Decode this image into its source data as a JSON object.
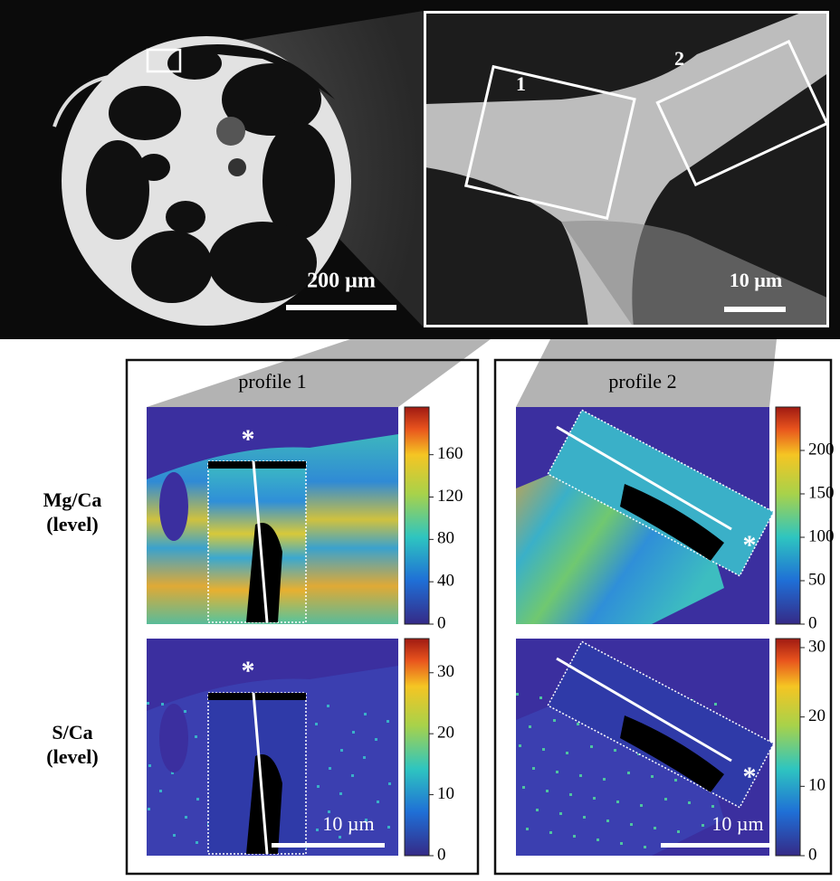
{
  "overview": {
    "scale_label": "200 µm"
  },
  "inset": {
    "scale_label": "10 µm",
    "box_labels": [
      "1",
      "2"
    ]
  },
  "row_labels": [
    {
      "element": "Mg/Ca",
      "unit": "(level)"
    },
    {
      "element": "S/Ca",
      "unit": "(level)"
    }
  ],
  "profiles": [
    {
      "title": "profile 1",
      "maps": [
        {
          "marker": "*",
          "colorbar": {
            "lim": [
              0,
              205
            ],
            "ticks": [
              0,
              40,
              80,
              120,
              160
            ]
          }
        },
        {
          "marker": "*",
          "scale_label": "10 µm",
          "colorbar": {
            "lim": [
              0,
              35.6
            ],
            "ticks": [
              0,
              10,
              20,
              30
            ]
          }
        }
      ]
    },
    {
      "title": "profile 2",
      "maps": [
        {
          "marker": "*",
          "colorbar": {
            "lim": [
              0,
              250
            ],
            "ticks": [
              0,
              50,
              100,
              150,
              200
            ]
          }
        },
        {
          "marker": "*",
          "scale_label": "10 µm",
          "colorbar": {
            "lim": [
              0,
              31.3
            ],
            "ticks": [
              0,
              10,
              20,
              30
            ]
          }
        }
      ]
    }
  ]
}
